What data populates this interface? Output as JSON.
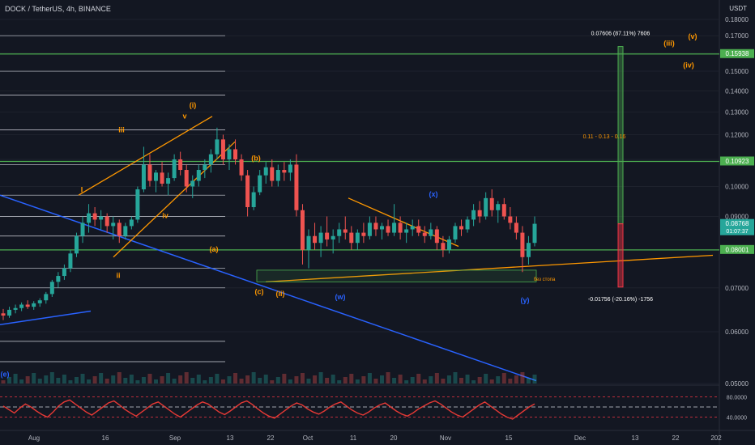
{
  "header": {
    "symbol_line": "DOCK / TetherUS, 4h, BINANCE",
    "currency": "USDT"
  },
  "chart_data": {
    "type": "candlestick",
    "y_scale": "log",
    "price_axis_ticks": [
      "0.18000",
      "0.17000",
      "0.16000",
      "0.15000",
      "0.14000",
      "0.13000",
      "0.12000",
      "0.11000",
      "0.10000",
      "0.09000",
      "0.07000",
      "0.06000",
      "0.05000"
    ],
    "time_axis_ticks": [
      "Aug",
      "16",
      "Sep",
      "13",
      "22",
      "Oct",
      "11",
      "20",
      "Nov",
      "15",
      "Dec",
      "13",
      "22",
      "202"
    ],
    "price_labels": [
      {
        "value": 0.15938,
        "text": "0.15938",
        "color": "#4caf50"
      },
      {
        "value": 0.10923,
        "text": "0.10923",
        "color": "#4caf50"
      },
      {
        "value": 0.08768,
        "text": "0.08768",
        "sub": "01:07:37",
        "color": "#26a69a"
      },
      {
        "value": 0.08001,
        "text": "0.08001",
        "color": "#4caf50"
      }
    ],
    "horizontal_levels": [
      0.15938,
      0.10923,
      0.08001
    ],
    "candles": [
      [
        0.064,
        0.065,
        0.0625,
        0.0635
      ],
      [
        0.0635,
        0.0655,
        0.063,
        0.0648
      ],
      [
        0.0648,
        0.066,
        0.064,
        0.0652
      ],
      [
        0.0652,
        0.0665,
        0.0645,
        0.066
      ],
      [
        0.066,
        0.067,
        0.065,
        0.0655
      ],
      [
        0.0655,
        0.0668,
        0.0648,
        0.0663
      ],
      [
        0.0663,
        0.0675,
        0.0655,
        0.067
      ],
      [
        0.067,
        0.069,
        0.0662,
        0.0685
      ],
      [
        0.0685,
        0.072,
        0.0678,
        0.0715
      ],
      [
        0.0715,
        0.074,
        0.07,
        0.073
      ],
      [
        0.073,
        0.076,
        0.072,
        0.075
      ],
      [
        0.075,
        0.08,
        0.074,
        0.079
      ],
      [
        0.079,
        0.085,
        0.078,
        0.084
      ],
      [
        0.084,
        0.09,
        0.082,
        0.088
      ],
      [
        0.088,
        0.094,
        0.085,
        0.091
      ],
      [
        0.091,
        0.093,
        0.087,
        0.089
      ],
      [
        0.089,
        0.092,
        0.086,
        0.09
      ],
      [
        0.09,
        0.091,
        0.085,
        0.087
      ],
      [
        0.087,
        0.09,
        0.083,
        0.088
      ],
      [
        0.088,
        0.089,
        0.082,
        0.084
      ],
      [
        0.084,
        0.088,
        0.083,
        0.087
      ],
      [
        0.087,
        0.09,
        0.086,
        0.089
      ],
      [
        0.089,
        0.1,
        0.088,
        0.099
      ],
      [
        0.099,
        0.115,
        0.098,
        0.108
      ],
      [
        0.108,
        0.112,
        0.1,
        0.102
      ],
      [
        0.102,
        0.106,
        0.098,
        0.105
      ],
      [
        0.105,
        0.109,
        0.1,
        0.101
      ],
      [
        0.101,
        0.105,
        0.097,
        0.103
      ],
      [
        0.103,
        0.112,
        0.102,
        0.11
      ],
      [
        0.11,
        0.113,
        0.104,
        0.106
      ],
      [
        0.106,
        0.108,
        0.098,
        0.1
      ],
      [
        0.1,
        0.104,
        0.096,
        0.102
      ],
      [
        0.102,
        0.108,
        0.1,
        0.106
      ],
      [
        0.106,
        0.11,
        0.103,
        0.108
      ],
      [
        0.108,
        0.114,
        0.105,
        0.112
      ],
      [
        0.112,
        0.123,
        0.11,
        0.118
      ],
      [
        0.118,
        0.12,
        0.108,
        0.11
      ],
      [
        0.11,
        0.116,
        0.106,
        0.114
      ],
      [
        0.114,
        0.118,
        0.108,
        0.11
      ],
      [
        0.11,
        0.112,
        0.102,
        0.104
      ],
      [
        0.104,
        0.106,
        0.09,
        0.093
      ],
      [
        0.093,
        0.1,
        0.092,
        0.098
      ],
      [
        0.098,
        0.106,
        0.097,
        0.104
      ],
      [
        0.104,
        0.109,
        0.101,
        0.107
      ],
      [
        0.107,
        0.11,
        0.1,
        0.102
      ],
      [
        0.102,
        0.108,
        0.1,
        0.106
      ],
      [
        0.106,
        0.109,
        0.102,
        0.105
      ],
      [
        0.105,
        0.11,
        0.102,
        0.108
      ],
      [
        0.108,
        0.112,
        0.09,
        0.092
      ],
      [
        0.092,
        0.094,
        0.076,
        0.08
      ],
      [
        0.08,
        0.086,
        0.075,
        0.084
      ],
      [
        0.084,
        0.088,
        0.08,
        0.082
      ],
      [
        0.082,
        0.087,
        0.078,
        0.085
      ],
      [
        0.085,
        0.09,
        0.081,
        0.083
      ],
      [
        0.083,
        0.086,
        0.079,
        0.084
      ],
      [
        0.084,
        0.088,
        0.082,
        0.086
      ],
      [
        0.086,
        0.09,
        0.083,
        0.085
      ],
      [
        0.085,
        0.087,
        0.08,
        0.082
      ],
      [
        0.082,
        0.086,
        0.08,
        0.085
      ],
      [
        0.085,
        0.088,
        0.082,
        0.084
      ],
      [
        0.084,
        0.09,
        0.083,
        0.088
      ],
      [
        0.088,
        0.09,
        0.084,
        0.086
      ],
      [
        0.086,
        0.088,
        0.083,
        0.087
      ],
      [
        0.087,
        0.089,
        0.084,
        0.085
      ],
      [
        0.085,
        0.094,
        0.084,
        0.088
      ],
      [
        0.088,
        0.09,
        0.083,
        0.085
      ],
      [
        0.085,
        0.088,
        0.082,
        0.086
      ],
      [
        0.086,
        0.089,
        0.084,
        0.087
      ],
      [
        0.087,
        0.089,
        0.084,
        0.085
      ],
      [
        0.085,
        0.087,
        0.082,
        0.084
      ],
      [
        0.084,
        0.088,
        0.083,
        0.086
      ],
      [
        0.086,
        0.087,
        0.08,
        0.082
      ],
      [
        0.082,
        0.084,
        0.078,
        0.08
      ],
      [
        0.08,
        0.084,
        0.079,
        0.083
      ],
      [
        0.083,
        0.088,
        0.082,
        0.087
      ],
      [
        0.087,
        0.089,
        0.084,
        0.086
      ],
      [
        0.086,
        0.09,
        0.085,
        0.089
      ],
      [
        0.089,
        0.094,
        0.087,
        0.092
      ],
      [
        0.092,
        0.095,
        0.088,
        0.09
      ],
      [
        0.09,
        0.098,
        0.089,
        0.096
      ],
      [
        0.096,
        0.099,
        0.09,
        0.092
      ],
      [
        0.092,
        0.095,
        0.088,
        0.094
      ],
      [
        0.094,
        0.096,
        0.089,
        0.09
      ],
      [
        0.09,
        0.093,
        0.086,
        0.088
      ],
      [
        0.088,
        0.09,
        0.083,
        0.085
      ],
      [
        0.085,
        0.087,
        0.074,
        0.078
      ],
      [
        0.078,
        0.084,
        0.076,
        0.082
      ],
      [
        0.082,
        0.09,
        0.081,
        0.0877
      ]
    ],
    "elliott_labels": [
      {
        "text": "I",
        "color": "#ff9800"
      },
      {
        "text": "ii",
        "color": "#ff9800"
      },
      {
        "text": "iii",
        "color": "#ff9800"
      },
      {
        "text": "iv",
        "color": "#ff9800"
      },
      {
        "text": "v",
        "color": "#ff9800"
      },
      {
        "text": "(i)",
        "color": "#ff9800"
      },
      {
        "text": "(a)",
        "color": "#ff9800"
      },
      {
        "text": "(b)",
        "color": "#ff9800"
      },
      {
        "text": "(c)",
        "color": "#ff9800"
      },
      {
        "text": "(ii)",
        "color": "#ff9800"
      },
      {
        "text": "(w)",
        "color": "#2962ff"
      },
      {
        "text": "(x)",
        "color": "#2962ff"
      },
      {
        "text": "(y)",
        "color": "#2962ff"
      },
      {
        "text": "(iii)",
        "color": "#ff9800"
      },
      {
        "text": "(iv)",
        "color": "#ff9800"
      },
      {
        "text": "(v)",
        "color": "#ff9800"
      },
      {
        "text": "(e)",
        "color": "#2962ff"
      }
    ],
    "annotations": {
      "target_up": "0.07606 (87.11%) 7606",
      "target_down": "-0.01756 (-20.16%) -1756",
      "zone": "0.11 - 0.13 - 0.16",
      "box_label": "без стопа"
    },
    "oscillator": {
      "levels": [
        "80.0000",
        "40.0000"
      ],
      "values": [
        62,
        55,
        48,
        58,
        66,
        60,
        52,
        45,
        40,
        50,
        62,
        70,
        74,
        66,
        58,
        50,
        44,
        52,
        60,
        68,
        72,
        64,
        55,
        48,
        42,
        50,
        58,
        66,
        70,
        62,
        54,
        46,
        40,
        48,
        56,
        64,
        70,
        66,
        58,
        50,
        45,
        52,
        60,
        68,
        72,
        65,
        56,
        48,
        42,
        38,
        46,
        54,
        62,
        68,
        64,
        56,
        50,
        46,
        52,
        60,
        66,
        70,
        62,
        54,
        48,
        44,
        50,
        58,
        64,
        68,
        60,
        52,
        46,
        42,
        48,
        56,
        62,
        68,
        72,
        66,
        58,
        50,
        44,
        40,
        48,
        56,
        64,
        70,
        62,
        54,
        46,
        40,
        36,
        44,
        52,
        60,
        66
      ]
    }
  }
}
